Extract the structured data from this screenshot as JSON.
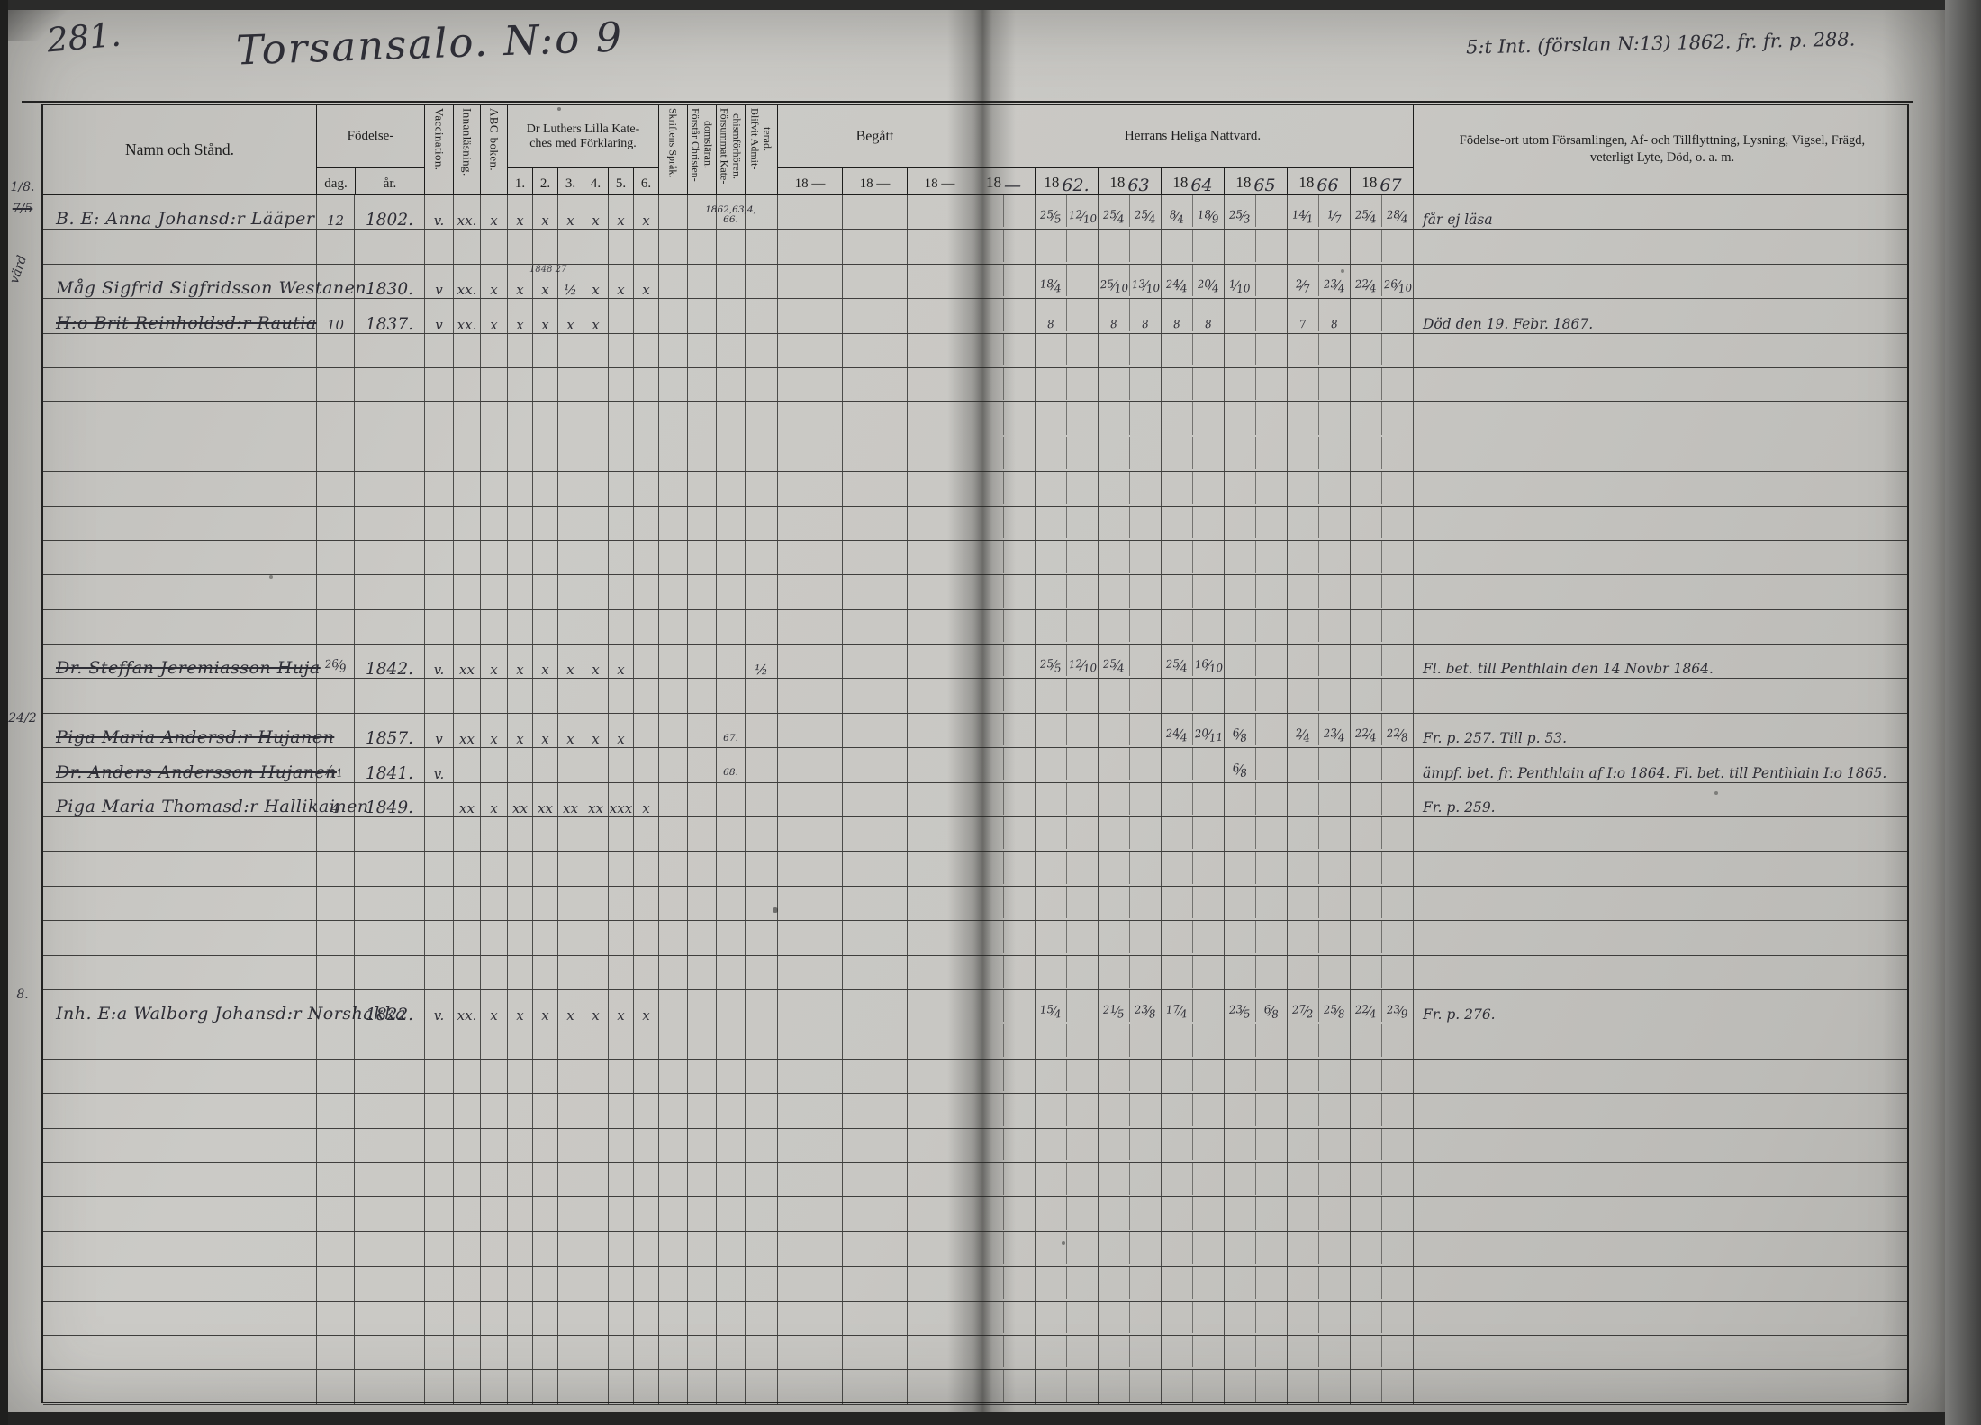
{
  "page": {
    "number": "281.",
    "title": "Torsansalo. N:o 9",
    "top_right_note": "5:t Int. (förslan N:13) 1862. fr. fr. p. 288."
  },
  "header": {
    "name_col": "Namn och Stånd.",
    "birth": {
      "label": "Födelse-",
      "day": "dag.",
      "year": "år."
    },
    "vaccination": "Vaccination.",
    "innanlasning": "Innanläsning.",
    "abc": "ABC-boken.",
    "katekes_line1": "Dr Luthers Lilla Kate-",
    "katekes_line2": "ches med Förklaring.",
    "katekes_numbers": [
      "1.",
      "2.",
      "3.",
      "4.",
      "5.",
      "6."
    ],
    "skriftens": "Skriftens Språk.",
    "forstar": "Förstår Christen-\ndomsläran.",
    "forsummat": "Försummat Kate-\nchismförhören.",
    "blifvit": "Blifvit Admit-\nterad.",
    "begatt_label": "Begått",
    "begatt_years": [
      "18 —",
      "18 —",
      "18 —"
    ],
    "nattvard_label": "Herrans Heliga Nattvard.",
    "nattvard_years": [
      {
        "p": "18",
        "s": "—"
      },
      {
        "p": "18",
        "s": "62."
      },
      {
        "p": "18",
        "s": "63"
      },
      {
        "p": "18",
        "s": "64"
      },
      {
        "p": "18",
        "s": "65"
      },
      {
        "p": "18",
        "s": "66"
      },
      {
        "p": "18",
        "s": "67"
      }
    ],
    "notes_col": "Födelse-ort utom Församlingen, Af- och Tillflyttning, Lysning, Vigsel, Frägd, veterligt Lyte, Död, o. a. m."
  },
  "records": [
    {
      "row": 1,
      "margin": [
        {
          "text": "1/8."
        },
        {
          "text": "7/5",
          "struck": true
        }
      ],
      "name": "B. E: Anna Johansd:r Lääper",
      "dag": "12",
      "ar": "1802.",
      "vacc": "v.",
      "innan": "xx.",
      "abc": "x",
      "k": [
        "x",
        "x",
        "x",
        "x",
        "x",
        "x"
      ],
      "forsummat": "1862,63,4,\n66.",
      "natt": [
        null,
        [
          "25/5",
          "12/10"
        ],
        [
          "25/4",
          "25/4"
        ],
        [
          "8/4",
          "18/9"
        ],
        [
          "25/3",
          ""
        ],
        [
          "14/1",
          "1/7"
        ],
        [
          "25/4",
          "28/4"
        ]
      ],
      "note": "får ej läsa"
    },
    {
      "row": 3,
      "margin": [
        {
          "text": "värd",
          "rot": true
        }
      ],
      "name": "Måg Sigfrid Sigfridsson Westanen",
      "k_note": "1848  27",
      "ar": "1830.",
      "vacc": "v",
      "innan": "xx.",
      "abc": "x",
      "k": [
        "x",
        "x",
        "½",
        "x",
        "x",
        "x"
      ],
      "natt": [
        null,
        [
          "18/4",
          ""
        ],
        [
          "25/10",
          "13/10"
        ],
        [
          "24/4",
          "20/4"
        ],
        [
          "1/10",
          ""
        ],
        [
          "2/7",
          "23/4"
        ],
        [
          "22/4",
          "26/10"
        ]
      ]
    },
    {
      "row": 4,
      "name": "H:o Brit Reinholdsd:r Rautia",
      "struck": true,
      "dag": "10",
      "ar": "1837.",
      "vacc": "v",
      "innan": "xx.",
      "abc": "x",
      "k": [
        "x",
        "x",
        "x",
        "x",
        "",
        ""
      ],
      "natt": [
        null,
        [
          "8",
          ""
        ],
        [
          "8",
          "8"
        ],
        [
          "8",
          "8"
        ],
        null,
        [
          "7",
          "8"
        ],
        null
      ],
      "note": "Död den 19. Febr. 1867."
    },
    {
      "row": 14,
      "name": "Dr. Steffan Jeremiasson Huja",
      "struck": true,
      "dag": "26/9",
      "ar": "1842.",
      "vacc": "v.",
      "innan": "xx",
      "abc": "x",
      "k": [
        "x",
        "x",
        "x",
        "x",
        "x",
        ""
      ],
      "blifvit": "½",
      "natt": [
        null,
        [
          "25/5",
          "12/10"
        ],
        [
          "25/4",
          ""
        ],
        [
          "25/4",
          "16/10"
        ],
        null,
        null,
        null
      ],
      "note": "Fl. bet. till Penthlain den 14 Novbr 1864."
    },
    {
      "row": 16,
      "margin": [
        {
          "text": "24/2"
        }
      ],
      "name": "Piga Maria Andersd:r Hujanen",
      "struck": true,
      "ar": "1857.",
      "vacc": "v",
      "innan": "xx",
      "abc": "x",
      "k": [
        "x",
        "x",
        "x",
        "x",
        "x",
        ""
      ],
      "forsummat": "67.",
      "natt": [
        null,
        null,
        null,
        [
          "24/4",
          "20/11"
        ],
        [
          "6/8",
          ""
        ],
        [
          "2/4",
          "23/4"
        ],
        [
          "22/4",
          "22/8"
        ]
      ],
      "note": "Fr. p. 257.  Till p. 53."
    },
    {
      "row": 17,
      "name": "Dr. Anders Andersson Hujanen",
      "struck": true,
      "dag": "/11",
      "ar": "1841.",
      "vacc": "v.",
      "forsummat": "68.",
      "natt": [
        null,
        null,
        null,
        null,
        [
          "6/8",
          ""
        ],
        null,
        null
      ],
      "note": "ämpf. bet. fr. Penthlain af I:o 1864.   Fl. bet. till Penthlain I:o 1865."
    },
    {
      "row": 18,
      "name": "Piga Maria Thomasd:r Hallikainen",
      "dag": "4",
      "ar": "1849.",
      "innan": "xx",
      "abc": "x",
      "k": [
        "xx",
        "xx",
        "xx",
        "xx",
        "xxx",
        "x"
      ],
      "natt": [
        null,
        null,
        null,
        null,
        null,
        null,
        null
      ],
      "note": "Fr. p. 259."
    },
    {
      "row": 24,
      "margin": [
        {
          "text": "8."
        }
      ],
      "name": "Inh. E:a Walborg Johansd:r Norshakka",
      "ar": "1822.",
      "vacc": "v.",
      "innan": "xx.",
      "abc": "x",
      "k": [
        "x",
        "x",
        "x",
        "x",
        "x",
        "x"
      ],
      "natt": [
        null,
        [
          "15/4",
          ""
        ],
        [
          "21/5",
          "23/8"
        ],
        [
          "17/4",
          ""
        ],
        [
          "23/5",
          "6/8"
        ],
        [
          "27/2",
          "25/8"
        ],
        [
          "22/4",
          "23/9"
        ]
      ],
      "note": "Fr. p. 276."
    }
  ]
}
